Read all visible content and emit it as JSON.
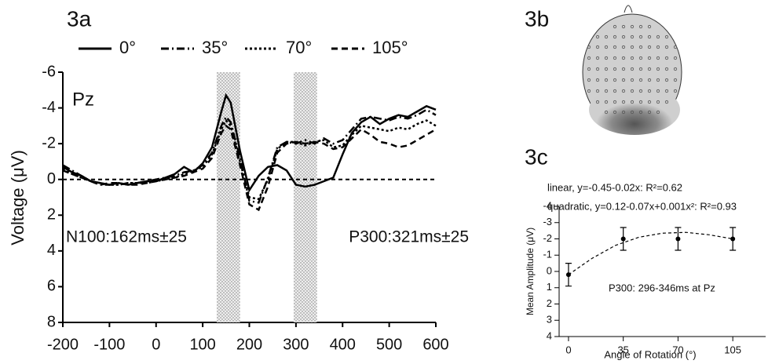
{
  "chart_data": [
    {
      "type": "line",
      "label": "3a",
      "ylabel": "Voltage (μV)",
      "x": [
        -200,
        -180,
        -160,
        -140,
        -120,
        -100,
        -80,
        -60,
        -40,
        -20,
        0,
        20,
        40,
        60,
        80,
        100,
        120,
        140,
        150,
        160,
        180,
        200,
        220,
        240,
        260,
        280,
        300,
        320,
        340,
        360,
        380,
        400,
        420,
        440,
        460,
        480,
        500,
        520,
        540,
        560,
        580,
        600
      ],
      "series": [
        {
          "name": "0°",
          "color": "#000000",
          "style": "solid",
          "values": [
            -0.7,
            -0.4,
            -0.2,
            0.1,
            0.2,
            0.3,
            0.2,
            0.3,
            0.2,
            0.1,
            0.1,
            -0.1,
            -0.3,
            -0.7,
            -0.4,
            -0.9,
            -1.8,
            -3.8,
            -4.7,
            -4.3,
            -1.6,
            0.6,
            -0.2,
            -0.7,
            -0.8,
            -0.5,
            0.3,
            0.4,
            0.3,
            0.1,
            -0.1,
            -1.4,
            -2.6,
            -3.2,
            -3.5,
            -3.1,
            -3.4,
            -3.6,
            -3.5,
            -3.8,
            -4.1,
            -3.9
          ]
        },
        {
          "name": "35°",
          "color": "#000000",
          "style": "dashdot",
          "values": [
            -0.8,
            -0.5,
            -0.2,
            0.1,
            0.3,
            0.3,
            0.3,
            0.2,
            0.2,
            0.1,
            0,
            -0.1,
            -0.2,
            -0.4,
            -0.5,
            -0.8,
            -1.5,
            -3.0,
            -3.5,
            -3.2,
            -1.2,
            1.2,
            1.3,
            -0.1,
            -1.8,
            -2.1,
            -2.0,
            -2.2,
            -2.0,
            -2.3,
            -2.0,
            -2.2,
            -2.8,
            -3.4,
            -3.5,
            -3.4,
            -3.3,
            -3.5,
            -3.4,
            -3.6,
            -3.9,
            -3.6
          ]
        },
        {
          "name": "70°",
          "color": "#000000",
          "style": "dotted",
          "values": [
            -0.6,
            -0.3,
            -0.1,
            0.1,
            0.2,
            0.3,
            0.3,
            0.2,
            0.2,
            0.2,
            0.1,
            0,
            -0.1,
            -0.3,
            -0.5,
            -0.7,
            -1.4,
            -2.8,
            -3.3,
            -3.0,
            -1.0,
            1.0,
            1.1,
            0,
            -1.7,
            -2.1,
            -2.1,
            -1.9,
            -2.1,
            -2.2,
            -1.8,
            -1.9,
            -2.5,
            -3.0,
            -2.9,
            -2.8,
            -2.7,
            -2.9,
            -2.8,
            -3.1,
            -3.3,
            -3.0
          ]
        },
        {
          "name": "105°",
          "color": "#000000",
          "style": "dashed",
          "values": [
            -0.5,
            -0.3,
            -0.1,
            0.1,
            0.3,
            0.2,
            0.2,
            0.3,
            0.3,
            0.2,
            0.1,
            0,
            -0.1,
            -0.2,
            -0.4,
            -0.6,
            -1.2,
            -2.6,
            -3.0,
            -2.8,
            -0.8,
            1.4,
            1.7,
            0.4,
            -1.5,
            -2.0,
            -2.1,
            -2.0,
            -2.1,
            -2.0,
            -1.7,
            -1.8,
            -2.3,
            -2.8,
            -2.5,
            -2.1,
            -2.0,
            -1.8,
            -1.9,
            -2.2,
            -2.5,
            -2.8
          ]
        }
      ],
      "xlim": [
        -200,
        600
      ],
      "xticks": [
        -200,
        -100,
        0,
        100,
        200,
        300,
        400,
        500,
        600
      ],
      "ylim": [
        -6,
        8
      ],
      "yticks": [
        -6,
        -4,
        -2,
        0,
        2,
        4,
        6,
        8
      ],
      "y_inverted": true,
      "zero_line": true,
      "legend": "top",
      "shaded_ranges": [
        [
          130,
          180
        ],
        [
          295,
          345
        ]
      ],
      "annotations": [
        "Pz",
        "N100:162ms±25",
        "P300:321ms±25"
      ]
    },
    {
      "type": "errorbar",
      "label": "3c",
      "xlabel": "Angle of Rotation (°)",
      "ylabel": "Mean Amplitude (μV)",
      "x": [
        0,
        35,
        70,
        105
      ],
      "values": [
        0.2,
        -2.0,
        -2.0,
        -2.0
      ],
      "errors": [
        0.7,
        0.7,
        0.7,
        0.7
      ],
      "color": "#000000",
      "fit": {
        "x": [
          0,
          15,
          30,
          45,
          60,
          75,
          90,
          105
        ],
        "values": [
          0.2,
          -0.8,
          -1.6,
          -2.1,
          -2.35,
          -2.4,
          -2.25,
          -2.0
        ]
      },
      "xlim": [
        -6,
        126
      ],
      "xticks": [
        0,
        35,
        70,
        105
      ],
      "ylim": [
        -4,
        4
      ],
      "yticks": [
        -4,
        -3,
        -2,
        -1,
        0,
        1,
        2,
        3,
        4
      ],
      "y_inverted": true,
      "annotations": [
        "linear, y=-0.45-0.02x: R²=0.62",
        "quadratic, y=0.12-0.07x+0.001x²: R²=0.93",
        "P300: 296-346ms at Pz"
      ]
    }
  ],
  "head_map": {
    "label": "3b"
  }
}
